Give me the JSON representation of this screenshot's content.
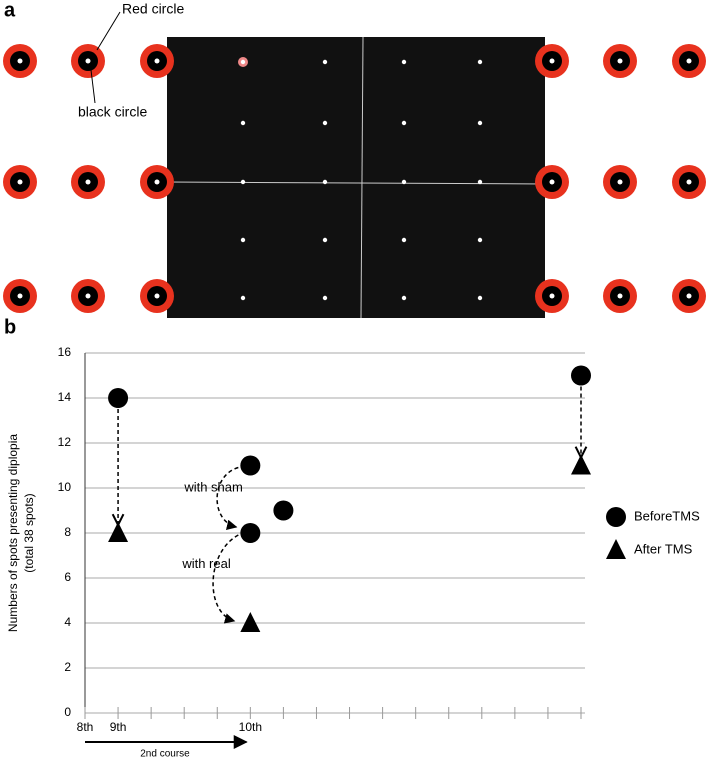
{
  "panel_labels": [
    "a",
    "b"
  ],
  "stimulus": {
    "annotations": [
      "Red circle",
      "black circle"
    ]
  },
  "chart_data": {
    "type": "scatter",
    "y_label": [
      "Numbers of spots presenting diplopia",
      "(total 38 spots)"
    ],
    "x_label": "2nd course",
    "annotations": [
      "with sham",
      "with real"
    ],
    "xlim": [
      8,
      23
    ],
    "xticks": [
      {
        "value": 8,
        "label": "8th"
      },
      {
        "value": 9,
        "label": "9th"
      },
      {
        "value": 13,
        "label": "10th"
      }
    ],
    "x_minor_ticks": [
      10,
      11,
      12,
      14,
      15,
      16,
      17,
      18,
      19,
      20,
      21,
      22,
      23
    ],
    "ylim": [
      0,
      16
    ],
    "yticks": [
      0,
      2,
      4,
      6,
      8,
      10,
      12,
      14,
      16
    ],
    "grid": true,
    "legend": "right",
    "series": [
      {
        "name": "BeforeTMS",
        "color": "#000000",
        "marker": "circle",
        "x": [
          9,
          13,
          13,
          14,
          23
        ],
        "values": [
          14,
          11,
          8,
          9,
          15
        ]
      },
      {
        "name": "After  TMS",
        "color": "#000000",
        "marker": "triangle",
        "x": [
          9,
          13,
          23
        ],
        "values": [
          8,
          4,
          11
        ]
      }
    ]
  }
}
